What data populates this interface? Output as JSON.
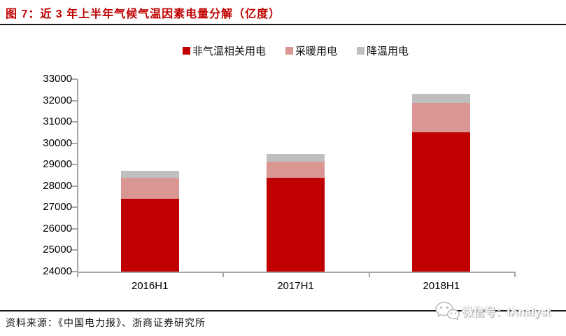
{
  "header": {
    "title": "图 7：近 3 年上半年气候气温因素电量分解（亿度）"
  },
  "footer": {
    "source": "资料来源：《中国电力报》、浙商证券研究所",
    "watermark": "微信号：iAnalyst"
  },
  "icons": {
    "wechat": "wechat-icon"
  },
  "colors": {
    "title_red": "#c00000",
    "bar_red": "#c00000",
    "bar_pink": "#d99693",
    "bar_gray": "#bfbfbf",
    "axis_gray": "#a6a6a6",
    "rule_black": "#1a1a1a"
  },
  "chart_data": {
    "type": "bar",
    "stacked": true,
    "title": "图 7：近 3 年上半年气候气温因素电量分解（亿度）",
    "categories": [
      "2016H1",
      "2017H1",
      "2018H1"
    ],
    "series": [
      {
        "name": "非气温相关用电",
        "color": "#c00000",
        "values": [
          27400,
          28400,
          30500
        ]
      },
      {
        "name": "采暖用电",
        "color": "#d99693",
        "values": [
          1000,
          750,
          1400
        ]
      },
      {
        "name": "降温用电",
        "color": "#bfbfbf",
        "values": [
          300,
          350,
          400
        ]
      }
    ],
    "stack_totals": [
      28700,
      29500,
      32300
    ],
    "xlabel": "",
    "ylabel": "",
    "ylim": [
      24000,
      33000
    ],
    "yticks": [
      24000,
      25000,
      26000,
      27000,
      28000,
      29000,
      30000,
      31000,
      32000,
      33000
    ],
    "legend_position": "top",
    "grid": false
  }
}
